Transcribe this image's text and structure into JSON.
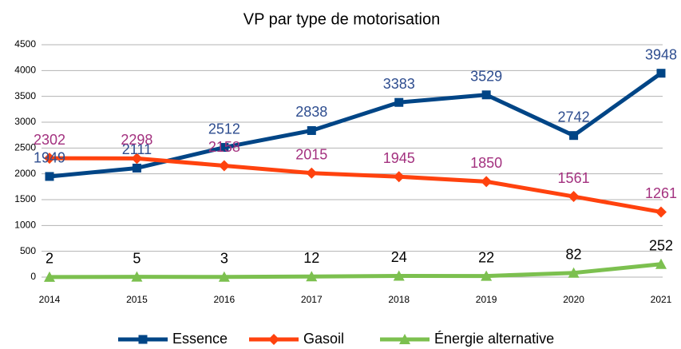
{
  "chart_data": {
    "type": "line",
    "title": "VP par type de motorisation",
    "categories": [
      "2014",
      "2015",
      "2016",
      "2017",
      "2018",
      "2019",
      "2020",
      "2021"
    ],
    "series": [
      {
        "name": "Essence",
        "color": "#004586",
        "label_color": "#2e4d8f",
        "marker": "square",
        "values": [
          1949,
          2111,
          2512,
          2838,
          3383,
          3529,
          2742,
          3948
        ]
      },
      {
        "name": "Gasoil",
        "color": "#ff420e",
        "label_color": "#a3317f",
        "marker": "diamond",
        "values": [
          2302,
          2298,
          2158,
          2015,
          1945,
          1850,
          1561,
          1261
        ]
      },
      {
        "name": "Énergie alternative",
        "color": "#7cc04f",
        "label_color": "#000000",
        "marker": "triangle",
        "values": [
          2,
          5,
          3,
          12,
          24,
          22,
          82,
          252
        ]
      }
    ],
    "ylim": [
      0,
      4500
    ],
    "yticks": [
      0,
      500,
      1000,
      1500,
      2000,
      2500,
      3000,
      3500,
      4000,
      4500
    ],
    "grid": true,
    "legend": "bottom"
  }
}
